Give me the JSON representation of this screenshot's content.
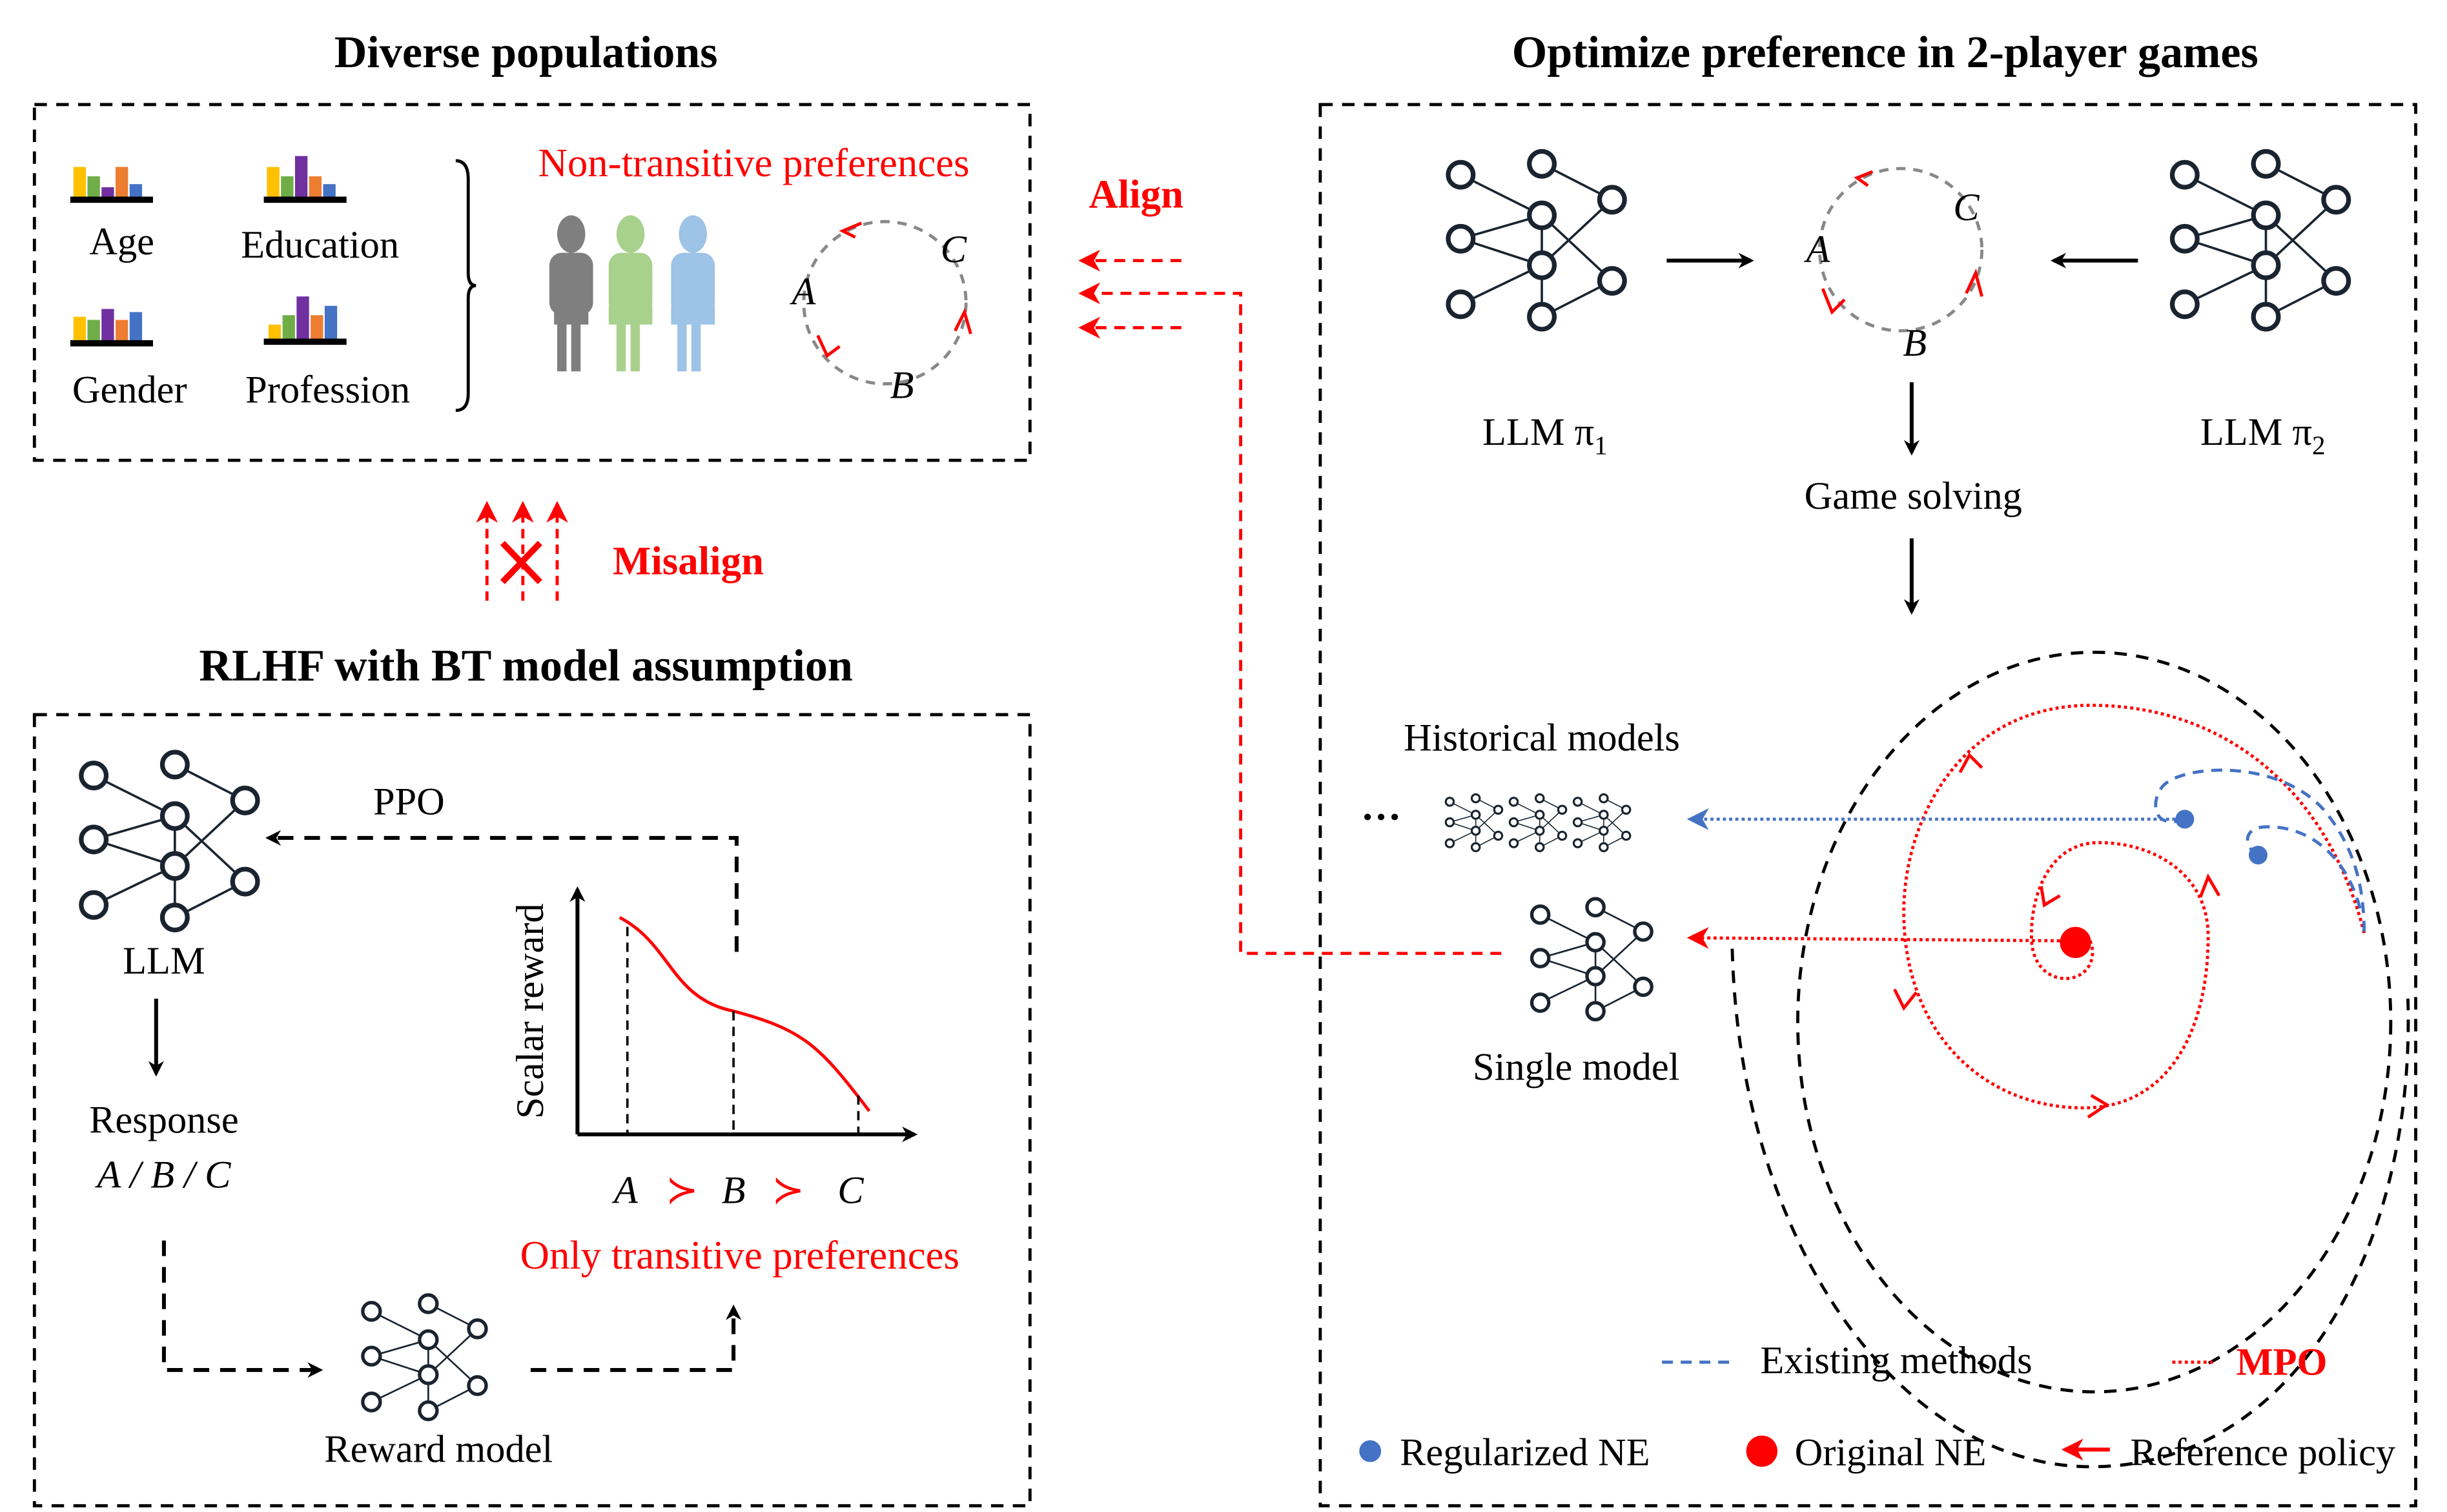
{
  "titles": {
    "diverse": "Diverse populations",
    "rlhf": "RLHF with BT model assumption",
    "optimize": "Optimize preference in 2-player games"
  },
  "populations": {
    "groups": [
      "Age",
      "Education",
      "Gender",
      "Profession"
    ],
    "non_transitive": "Non-transitive preferences",
    "cycle": {
      "a": "A",
      "b": "B",
      "c": "C"
    }
  },
  "align_label": "Align",
  "misalign_label": "Misalign",
  "rlhf": {
    "llm": "LLM",
    "response": "Response",
    "options": "A / B / C",
    "ppo": "PPO",
    "reward_model": "Reward model",
    "y_axis": "Scalar reward",
    "order": {
      "a": "A",
      "gt1": "≻",
      "b": "B",
      "gt2": "≻",
      "c": "C"
    },
    "only_transitive": "Only transitive preferences"
  },
  "game": {
    "player1": "LLM π",
    "player1_sub": "1",
    "player2": "LLM π",
    "player2_sub": "2",
    "cycle": {
      "a": "A",
      "b": "B",
      "c": "C"
    },
    "game_solving": "Game solving",
    "historical": "Historical models",
    "ellipsis": "···",
    "single": "Single model"
  },
  "legend": {
    "existing": "Existing methods",
    "mpo": "MPO",
    "regularized": "Regularized NE",
    "original": "Original NE",
    "reference": "Reference policy"
  },
  "colors": {
    "red": "#ff0000",
    "blue": "#4472c4",
    "bar_yellow": "#ffc000",
    "bar_green": "#70ad47",
    "bar_purple": "#7030a0",
    "bar_orange": "#ed7d31",
    "bar_blue": "#4472c4",
    "person_gray": "#7f7f7f",
    "person_green": "#a9d18e",
    "person_blue": "#9dc3e6"
  }
}
